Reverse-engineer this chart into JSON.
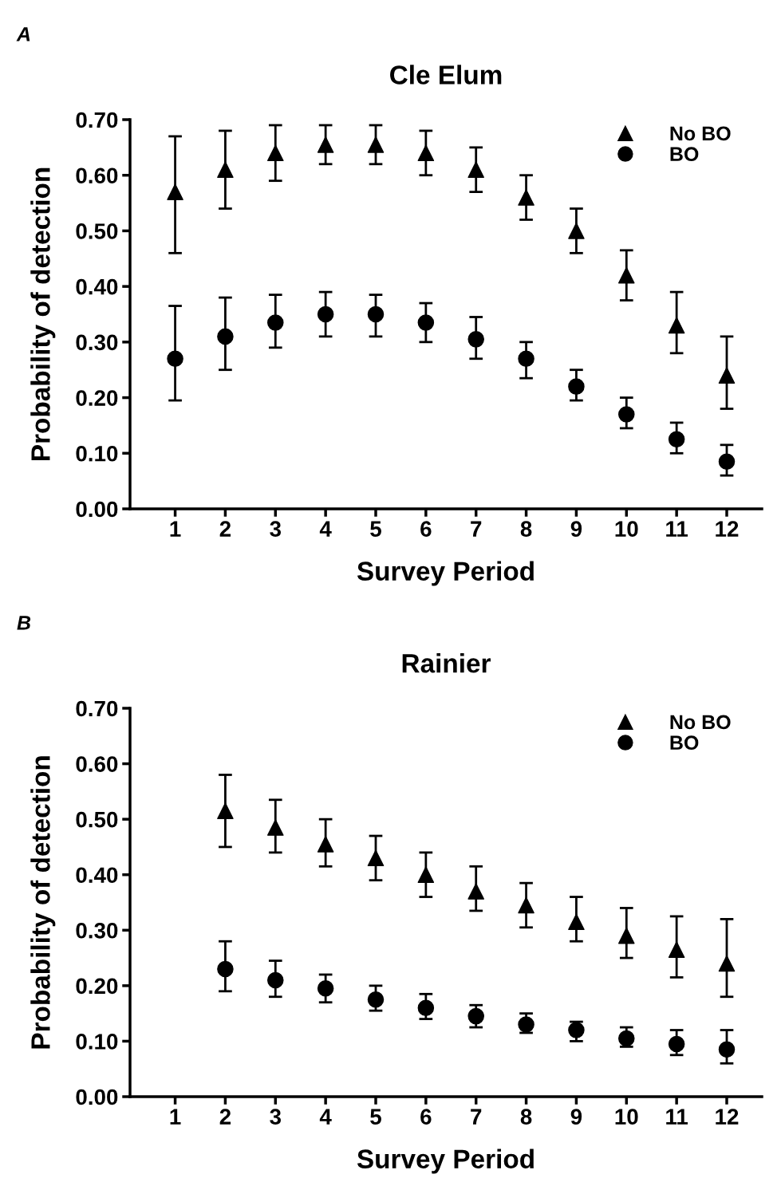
{
  "chart_data": [
    {
      "type": "scatter",
      "title": "Cle Elum",
      "annotations": [
        "A"
      ],
      "xlabel": "Survey Period",
      "ylabel": "Probability of detection",
      "categories": [
        "1",
        "2",
        "3",
        "4",
        "5",
        "6",
        "7",
        "8",
        "9",
        "10",
        "11",
        "12"
      ],
      "ylim": [
        0,
        0.7
      ],
      "yticks": [
        {
          "value": 0,
          "label": "0.00"
        },
        {
          "value": 0.1,
          "label": "0.10"
        },
        {
          "value": 0.2,
          "label": "0.20"
        },
        {
          "value": 0.3,
          "label": "0.30"
        },
        {
          "value": 0.4,
          "label": "0.40"
        },
        {
          "value": 0.5,
          "label": "0.50"
        },
        {
          "value": 0.6,
          "label": "0.60"
        },
        {
          "value": 0.7,
          "label": "0.70"
        }
      ],
      "legend": "top right",
      "grid": false,
      "series": [
        {
          "name": "No BO",
          "color": "#000000",
          "marker": "triangle",
          "values": [
            0.57,
            0.61,
            0.64,
            0.655,
            0.655,
            0.64,
            0.61,
            0.56,
            0.5,
            0.42,
            0.33,
            0.24
          ],
          "errors": [
            [
              0.46,
              0.67
            ],
            [
              0.54,
              0.68
            ],
            [
              0.59,
              0.69
            ],
            [
              0.62,
              0.69
            ],
            [
              0.62,
              0.69
            ],
            [
              0.6,
              0.68
            ],
            [
              0.57,
              0.65
            ],
            [
              0.52,
              0.6
            ],
            [
              0.46,
              0.54
            ],
            [
              0.375,
              0.465
            ],
            [
              0.28,
              0.39
            ],
            [
              0.18,
              0.31
            ]
          ]
        },
        {
          "name": "BO",
          "color": "#000000",
          "marker": "circle",
          "values": [
            0.27,
            0.31,
            0.335,
            0.35,
            0.35,
            0.335,
            0.305,
            0.27,
            0.22,
            0.17,
            0.125,
            0.085
          ],
          "errors": [
            [
              0.195,
              0.365
            ],
            [
              0.25,
              0.38
            ],
            [
              0.29,
              0.385
            ],
            [
              0.31,
              0.39
            ],
            [
              0.31,
              0.385
            ],
            [
              0.3,
              0.37
            ],
            [
              0.27,
              0.345
            ],
            [
              0.235,
              0.3
            ],
            [
              0.195,
              0.25
            ],
            [
              0.145,
              0.2
            ],
            [
              0.1,
              0.155
            ],
            [
              0.06,
              0.115
            ]
          ]
        }
      ]
    },
    {
      "type": "scatter",
      "title": "Rainier",
      "annotations": [
        "B"
      ],
      "xlabel": "Survey Period",
      "ylabel": "Probability of detection",
      "categories": [
        "1",
        "2",
        "3",
        "4",
        "5",
        "6",
        "7",
        "8",
        "9",
        "10",
        "11",
        "12"
      ],
      "ylim": [
        0,
        0.7
      ],
      "yticks": [
        {
          "value": 0,
          "label": "0.00"
        },
        {
          "value": 0.1,
          "label": "0.10"
        },
        {
          "value": 0.2,
          "label": "0.20"
        },
        {
          "value": 0.3,
          "label": "0.30"
        },
        {
          "value": 0.4,
          "label": "0.40"
        },
        {
          "value": 0.5,
          "label": "0.50"
        },
        {
          "value": 0.6,
          "label": "0.60"
        },
        {
          "value": 0.7,
          "label": "0.70"
        }
      ],
      "legend": "top right",
      "grid": false,
      "series": [
        {
          "name": "No BO",
          "color": "#000000",
          "marker": "triangle",
          "values": [
            null,
            0.515,
            0.485,
            0.455,
            0.43,
            0.4,
            0.37,
            0.345,
            0.315,
            0.29,
            0.265,
            0.24
          ],
          "errors": [
            null,
            [
              0.45,
              0.58
            ],
            [
              0.44,
              0.535
            ],
            [
              0.415,
              0.5
            ],
            [
              0.39,
              0.47
            ],
            [
              0.36,
              0.44
            ],
            [
              0.335,
              0.415
            ],
            [
              0.305,
              0.385
            ],
            [
              0.28,
              0.36
            ],
            [
              0.25,
              0.34
            ],
            [
              0.215,
              0.325
            ],
            [
              0.18,
              0.32
            ]
          ]
        },
        {
          "name": "BO",
          "color": "#000000",
          "marker": "circle",
          "values": [
            null,
            0.23,
            0.21,
            0.195,
            0.175,
            0.16,
            0.145,
            0.13,
            0.12,
            0.105,
            0.095,
            0.085
          ],
          "errors": [
            null,
            [
              0.19,
              0.28
            ],
            [
              0.18,
              0.245
            ],
            [
              0.17,
              0.22
            ],
            [
              0.155,
              0.2
            ],
            [
              0.14,
              0.185
            ],
            [
              0.125,
              0.165
            ],
            [
              0.115,
              0.15
            ],
            [
              0.1,
              0.135
            ],
            [
              0.09,
              0.125
            ],
            [
              0.075,
              0.12
            ],
            [
              0.06,
              0.12
            ]
          ]
        }
      ]
    }
  ]
}
